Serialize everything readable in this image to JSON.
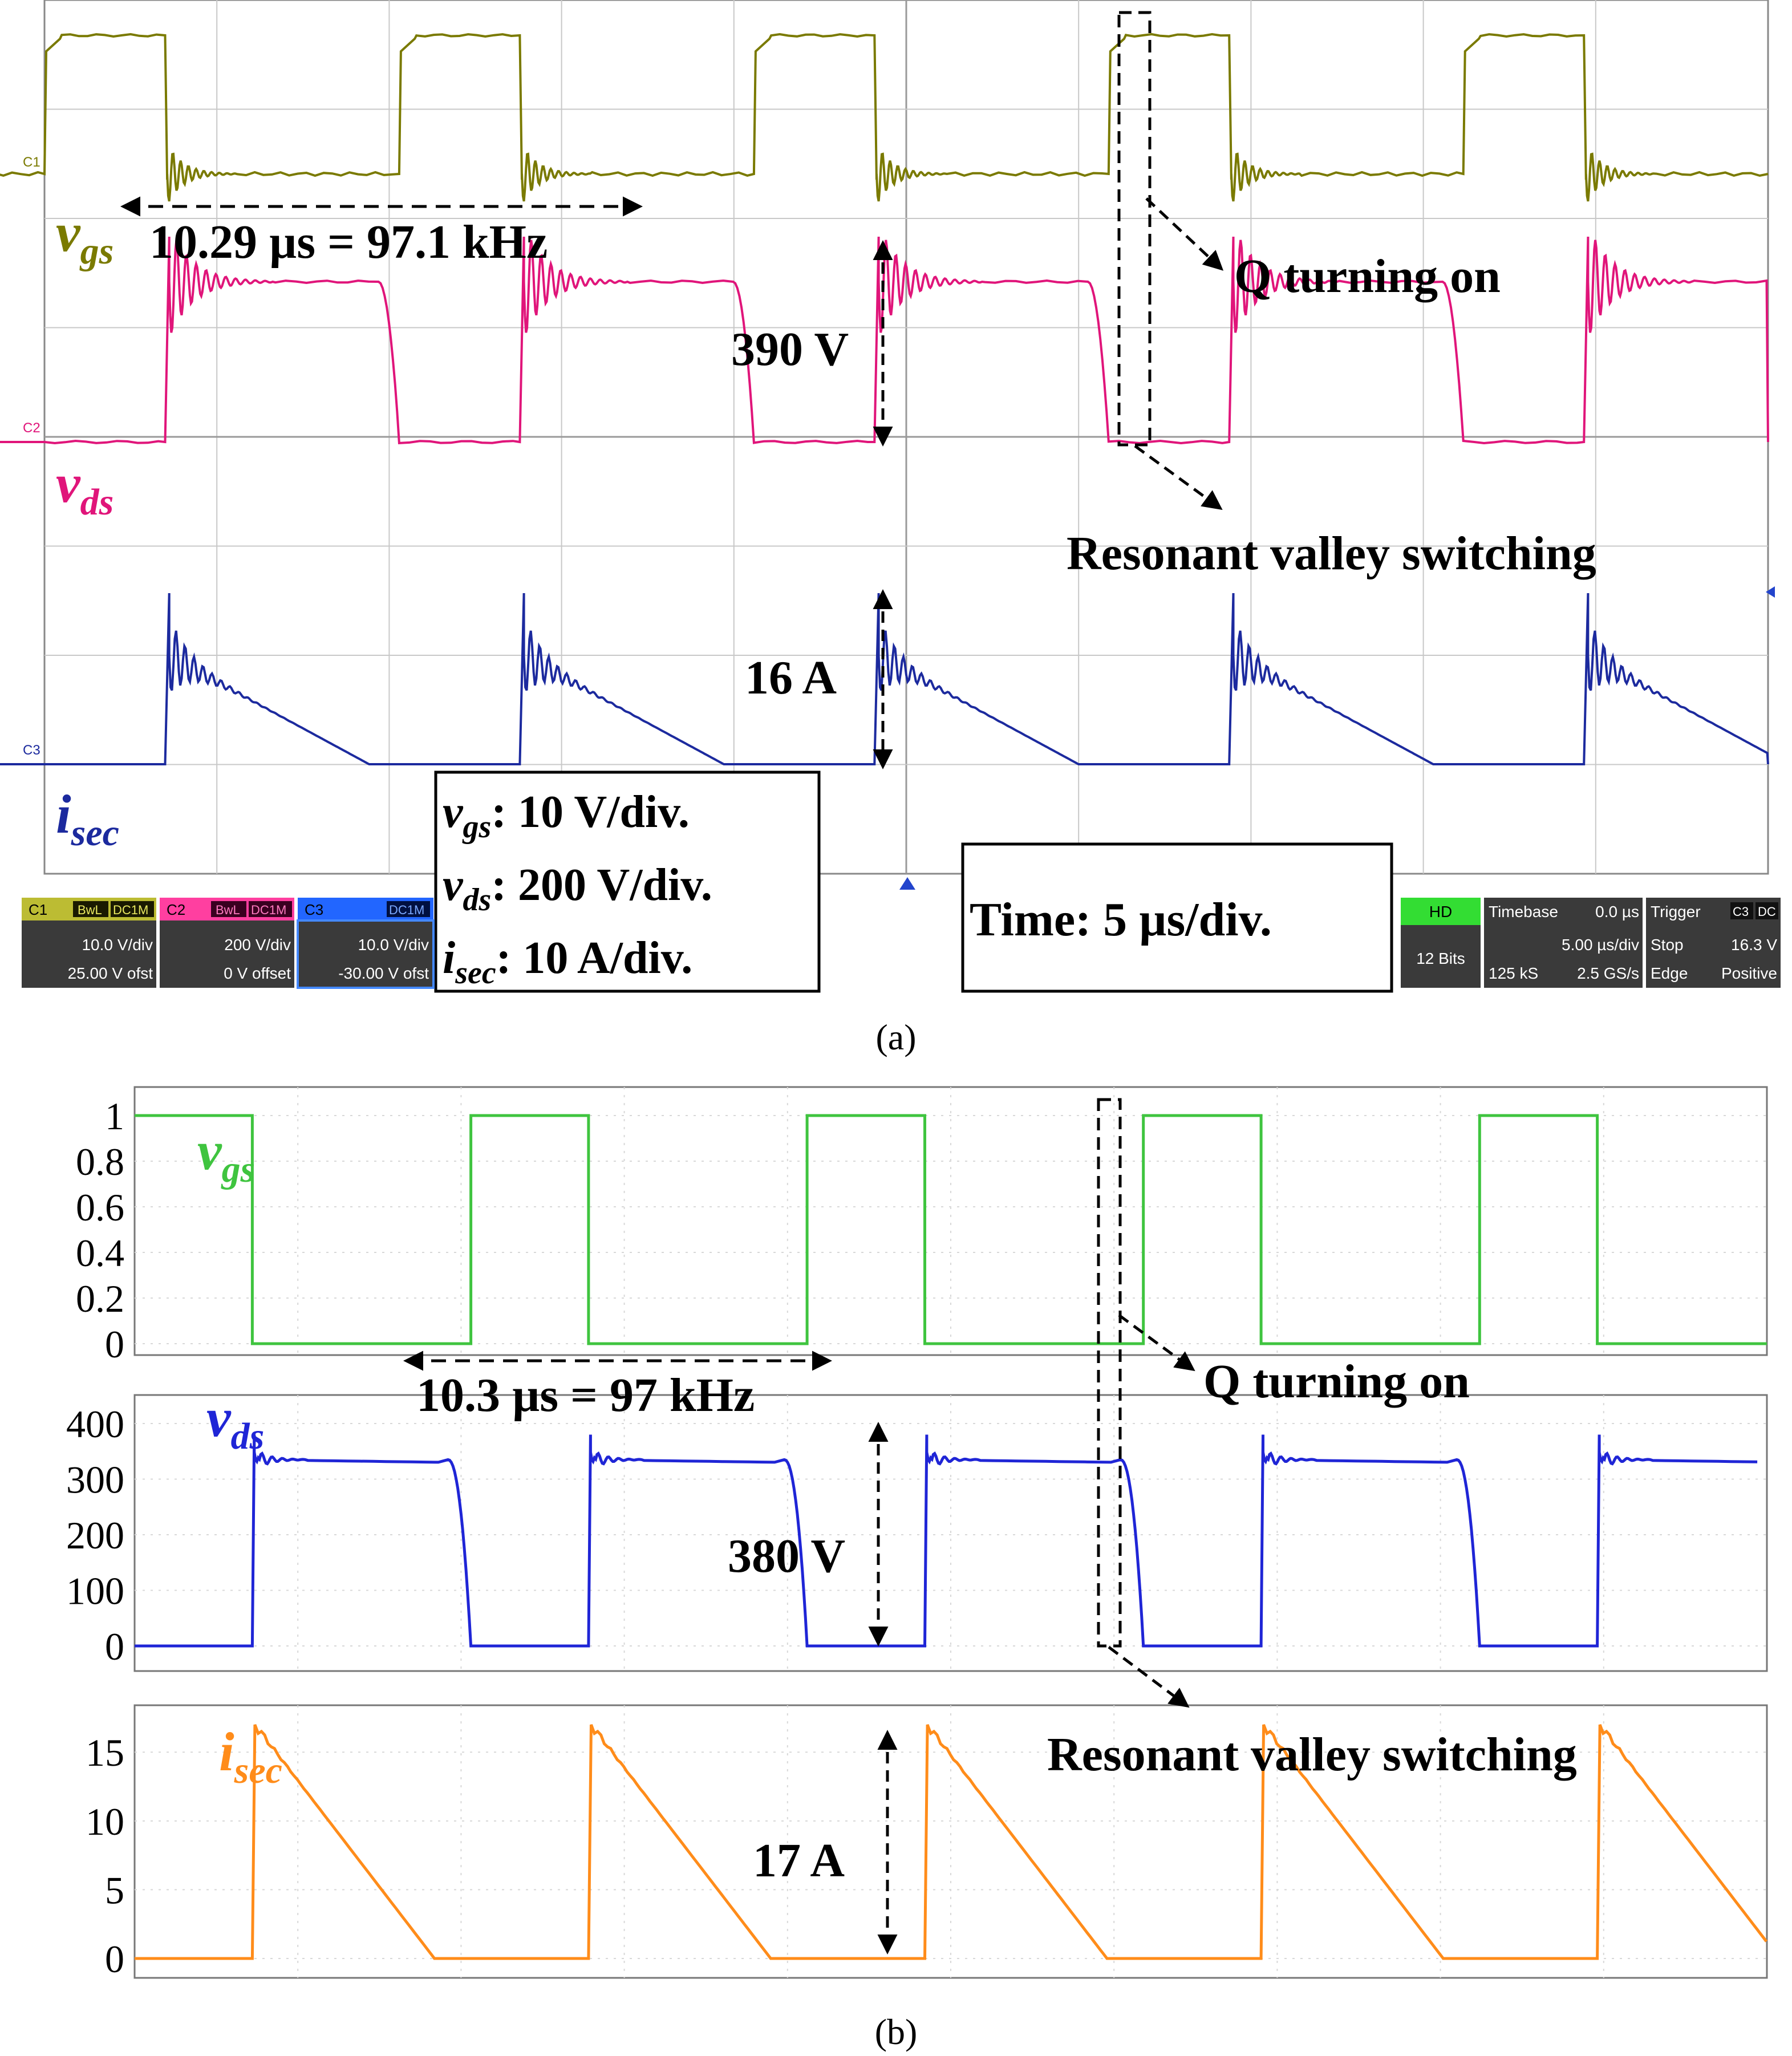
{
  "chart_data": [
    {
      "panel": "(a)",
      "type": "line",
      "scope": {
        "C1": {
          "name": "C1",
          "flags": [
            "BwL",
            "DC1M"
          ],
          "scale": "10.0 V/div",
          "offset": "25.00 V ofst",
          "color": "#7a7a00"
        },
        "C2": {
          "name": "C2",
          "flags": [
            "BwL",
            "DC1M"
          ],
          "scale": "200 V/div",
          "offset": "0 V offset",
          "color": "#e0157a"
        },
        "C3": {
          "name": "C3",
          "flags": [
            "DC1M"
          ],
          "scale": "10.0 V/div",
          "offset": "-30.00 V ofst",
          "color": "#1c2a9e"
        },
        "acq": {
          "mode": "HD",
          "bits": "12 Bits"
        },
        "timebase": {
          "title": "Timebase",
          "delay": "0.0 µs",
          "div": "5.00 µs/div",
          "samples": "125 kS",
          "rate": "2.5 GS/s"
        },
        "trigger": {
          "title": "Trigger",
          "chans": [
            "C3",
            "DC"
          ],
          "state": "Stop",
          "level": "16.3 V",
          "type": "Edge",
          "slope": "Positive"
        }
      },
      "period_us": 10.29,
      "series": [
        {
          "name": "vgs",
          "color": "#7a7a00",
          "high_div": 2.85,
          "low_div": 0.0,
          "on_us": [
            0.0,
            10.29,
            20.58,
            30.87,
            41.16
          ],
          "duty": 0.34
        },
        {
          "name": "vds",
          "color": "#e0157a",
          "high_V": 340,
          "peak_V": 390,
          "low_V": 0
        },
        {
          "name": "isec",
          "color": "#1c2a9e",
          "peak_A": 16,
          "low_A": 0
        }
      ],
      "labels": {
        "vgs_main": "v",
        "vgs_sub": "gs",
        "vds_main": "v",
        "vds_sub": "ds",
        "isec_main": "i",
        "isec_sub": "sec",
        "period": "10.29 µs = 97.1 kHz",
        "vds_amp": "390 V",
        "isec_amp": "16 A",
        "q_on": "Q turning on",
        "resonant": "Resonant valley switching",
        "scale_vgs": ": 10 V/div.",
        "scale_vds": ": 200 V/div.",
        "scale_isec": ": 10 A/div.",
        "time": "Time: 5 µs/div.",
        "caption": "(a)",
        "ch_tags": [
          "C1",
          "C2",
          "C3"
        ]
      }
    },
    {
      "panel": "(b)",
      "type": "line",
      "period_us": 10.3,
      "series": [
        {
          "name": "vgs",
          "color": "#3fc43f",
          "high": 1,
          "low": 0,
          "yticks": [
            "1",
            "0.8",
            "0.6",
            "0.4",
            "0.2",
            "0"
          ],
          "ylim": [
            0,
            1
          ]
        },
        {
          "name": "vds",
          "color": "#1f25d6",
          "high_V": 335,
          "peak_V": 380,
          "low_V": 0,
          "yticks": [
            "400",
            "300",
            "200",
            "100",
            "0"
          ],
          "ylim": [
            0,
            400
          ]
        },
        {
          "name": "isec",
          "color": "#ff8c1a",
          "peak_A": 17,
          "low_A": 0,
          "yticks": [
            "15",
            "10",
            "5",
            "0"
          ],
          "ylim": [
            0,
            17
          ]
        }
      ],
      "labels": {
        "vgs_main": "v",
        "vgs_sub": "gs",
        "vds_main": "v",
        "vds_sub": "ds",
        "isec_main": "i",
        "isec_sub": "sec",
        "period": "10.3 µs = 97 kHz",
        "vds_amp": "380 V",
        "isec_amp": "17 A",
        "q_on": "Q turning on",
        "resonant": "Resonant valley switching",
        "caption": "(b)"
      }
    }
  ]
}
